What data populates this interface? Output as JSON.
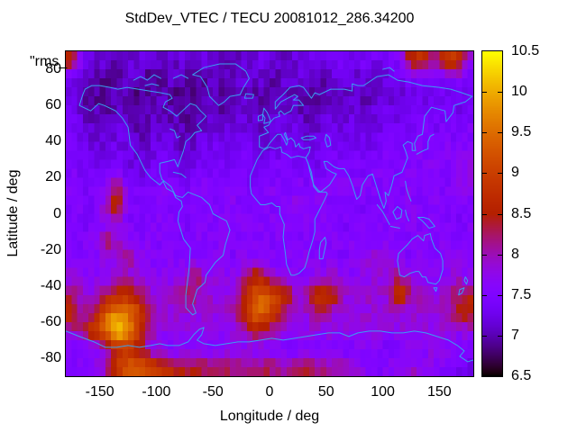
{
  "page": {
    "background": "#ffffff",
    "frame_color": "#000000"
  },
  "chart_data": {
    "type": "heatmap",
    "title": "StdDev_VTEC / TECU 20081012_286.34200",
    "xlabel": "Longitude / deg",
    "ylabel": "Latitude / deg",
    "overlay_label": "\"rms_",
    "x_range": [
      -180,
      180
    ],
    "y_range": [
      -90,
      90
    ],
    "x_ticks": [
      -150,
      -100,
      -50,
      0,
      50,
      100,
      150
    ],
    "y_ticks": [
      80,
      60,
      40,
      20,
      0,
      -20,
      -40,
      -60,
      -80
    ],
    "grid_lines": false,
    "coastline_color": "#3a9ff0",
    "colorbar": {
      "min": 6.5,
      "max": 10.5,
      "tick_values": [
        10.5,
        10,
        9.5,
        9,
        8.5,
        8,
        7.5,
        7,
        6.5
      ],
      "tick_labels": [
        "10.5",
        "10",
        "9.5",
        "9",
        "8.5",
        "8",
        "7.5",
        "7",
        "6.5"
      ],
      "dash_values": [
        10,
        9.5,
        9,
        8.5,
        8,
        7.5,
        7
      ],
      "palette": "pm3d black-purple-violet-red-orange-yellow",
      "position": "right"
    },
    "grid": {
      "lon_min": -180,
      "lat_max": 90,
      "cell_deg": 10,
      "cols": 36,
      "rows": 18,
      "units": "TECU",
      "values": [
        [
          8.7,
          7.3,
          7.2,
          7.1,
          7.0,
          7.1,
          7.2,
          7.1,
          7.0,
          7.1,
          7.2,
          7.1,
          7.2,
          7.1,
          7.0,
          7.1,
          7.2,
          7.3,
          7.2,
          7.1,
          7.2,
          7.3,
          7.2,
          7.3,
          7.4,
          7.3,
          7.4,
          7.3,
          7.4,
          7.5,
          8.6,
          8.9,
          7.8,
          8.8,
          9.1,
          7.8
        ],
        [
          7.3,
          7.1,
          7.0,
          6.9,
          7.0,
          7.1,
          7.0,
          6.9,
          7.0,
          7.1,
          7.0,
          6.9,
          7.0,
          7.1,
          7.0,
          7.1,
          7.2,
          7.1,
          7.0,
          7.1,
          7.2,
          7.1,
          7.0,
          7.1,
          7.2,
          7.1,
          7.2,
          7.1,
          7.2,
          7.3,
          7.4,
          7.3,
          7.4,
          7.5,
          7.6,
          7.4
        ],
        [
          7.2,
          7.0,
          6.9,
          6.9,
          7.0,
          6.9,
          6.8,
          6.9,
          7.0,
          6.9,
          6.8,
          6.9,
          7.0,
          6.9,
          7.0,
          7.1,
          7.0,
          6.9,
          7.0,
          7.1,
          7.0,
          6.9,
          7.0,
          7.1,
          7.0,
          7.1,
          7.0,
          7.1,
          7.2,
          7.1,
          7.2,
          7.3,
          7.2,
          7.3,
          7.2,
          7.3
        ],
        [
          7.3,
          7.1,
          7.0,
          7.0,
          7.1,
          7.0,
          6.9,
          7.0,
          7.1,
          7.0,
          6.9,
          7.0,
          7.1,
          7.0,
          7.1,
          7.2,
          7.1,
          7.0,
          7.1,
          7.2,
          7.1,
          7.0,
          7.1,
          7.2,
          7.1,
          7.2,
          7.1,
          7.2,
          7.3,
          7.2,
          7.3,
          7.4,
          7.3,
          7.4,
          7.3,
          7.4
        ],
        [
          7.4,
          7.2,
          7.1,
          7.1,
          7.2,
          7.1,
          7.0,
          7.1,
          7.2,
          7.1,
          7.0,
          7.1,
          7.2,
          7.1,
          7.2,
          7.3,
          7.2,
          7.1,
          7.2,
          7.3,
          7.2,
          7.1,
          7.2,
          7.3,
          7.2,
          7.3,
          7.2,
          7.3,
          7.4,
          7.3,
          7.4,
          7.5,
          7.4,
          7.5,
          7.4,
          7.5
        ],
        [
          7.5,
          7.3,
          7.2,
          7.2,
          7.3,
          7.2,
          7.1,
          7.2,
          7.3,
          7.2,
          7.1,
          7.2,
          7.3,
          7.4,
          7.3,
          7.4,
          7.3,
          7.2,
          7.3,
          7.4,
          7.3,
          7.2,
          7.3,
          7.4,
          7.3,
          7.4,
          7.3,
          7.4,
          7.5,
          7.4,
          7.5,
          7.6,
          7.5,
          7.6,
          7.5,
          7.6
        ],
        [
          7.5,
          7.4,
          7.3,
          7.3,
          7.4,
          7.3,
          7.2,
          7.3,
          7.4,
          7.3,
          7.2,
          7.3,
          7.4,
          7.5,
          7.4,
          7.5,
          7.4,
          7.3,
          7.4,
          7.5,
          7.4,
          7.3,
          7.4,
          7.5,
          7.4,
          7.5,
          7.4,
          7.5,
          7.6,
          7.5,
          7.6,
          7.5,
          7.6,
          7.5,
          7.6,
          7.9
        ],
        [
          7.5,
          7.4,
          7.4,
          7.5,
          8.3,
          7.5,
          7.4,
          7.5,
          7.6,
          7.5,
          7.4,
          7.5,
          7.6,
          7.5,
          7.6,
          7.5,
          7.4,
          7.5,
          7.6,
          7.5,
          7.6,
          7.5,
          7.6,
          7.5,
          7.6,
          7.5,
          7.6,
          7.5,
          7.6,
          7.5,
          7.6,
          7.5,
          7.6,
          7.5,
          7.6,
          7.7
        ],
        [
          7.5,
          7.5,
          7.4,
          8.0,
          8.9,
          7.6,
          7.4,
          7.5,
          7.6,
          7.5,
          7.4,
          7.5,
          7.6,
          7.5,
          7.6,
          7.5,
          7.5,
          7.6,
          7.5,
          7.6,
          7.9,
          7.5,
          7.6,
          7.5,
          7.6,
          7.5,
          7.4,
          7.5,
          7.6,
          7.5,
          7.6,
          7.5,
          7.6,
          7.5,
          7.6,
          7.5
        ],
        [
          7.5,
          7.4,
          7.5,
          7.6,
          7.7,
          7.5,
          7.4,
          7.5,
          7.6,
          7.5,
          7.4,
          7.5,
          7.6,
          7.5,
          7.6,
          7.5,
          7.6,
          7.5,
          7.6,
          7.5,
          7.6,
          7.5,
          7.6,
          7.5,
          7.4,
          7.5,
          7.6,
          7.5,
          7.6,
          7.5,
          7.6,
          7.5,
          7.6,
          7.5,
          7.4,
          7.5
        ],
        [
          7.5,
          7.5,
          7.6,
          8.3,
          8.0,
          7.6,
          7.5,
          7.6,
          7.5,
          7.6,
          7.5,
          7.6,
          7.5,
          7.6,
          7.5,
          7.6,
          7.5,
          7.6,
          7.5,
          7.6,
          7.5,
          7.6,
          7.5,
          7.6,
          7.5,
          7.6,
          7.5,
          7.6,
          7.5,
          7.6,
          7.5,
          7.6,
          7.5,
          7.6,
          7.5,
          7.6
        ],
        [
          7.6,
          7.6,
          7.5,
          7.7,
          7.9,
          8.2,
          7.7,
          7.6,
          7.5,
          7.6,
          7.5,
          7.6,
          7.5,
          7.6,
          7.5,
          7.6,
          7.7,
          7.6,
          7.5,
          7.6,
          7.5,
          7.6,
          7.5,
          7.6,
          7.5,
          7.6,
          7.7,
          8.0,
          7.9,
          7.6,
          7.5,
          7.6,
          7.5,
          7.6,
          7.7,
          7.6
        ],
        [
          7.8,
          7.7,
          7.6,
          7.7,
          7.8,
          7.9,
          7.7,
          7.6,
          7.7,
          7.6,
          7.7,
          8.3,
          7.8,
          7.7,
          7.6,
          7.8,
          8.6,
          8.4,
          7.9,
          7.7,
          7.6,
          7.7,
          7.8,
          7.9,
          7.7,
          7.6,
          7.7,
          7.8,
          7.9,
          8.1,
          7.8,
          7.7,
          7.6,
          7.7,
          7.8,
          7.7
        ],
        [
          8.2,
          7.9,
          7.8,
          8.3,
          8.6,
          8.8,
          8.4,
          7.9,
          7.8,
          7.9,
          8.4,
          8.1,
          7.9,
          7.8,
          7.9,
          8.3,
          9.2,
          9.4,
          9.0,
          8.6,
          7.9,
          8.2,
          9.0,
          8.7,
          7.9,
          7.8,
          7.9,
          7.8,
          7.9,
          9.0,
          8.0,
          7.9,
          7.8,
          7.9,
          8.3,
          8.5
        ],
        [
          8.8,
          8.0,
          8.4,
          9.4,
          9.8,
          9.6,
          9.0,
          8.2,
          7.9,
          7.8,
          7.9,
          7.8,
          7.9,
          7.8,
          7.9,
          8.4,
          9.3,
          9.5,
          8.9,
          8.0,
          7.9,
          7.8,
          8.4,
          7.9,
          7.8,
          7.9,
          7.8,
          7.9,
          7.8,
          7.9,
          7.8,
          7.9,
          7.8,
          7.9,
          8.4,
          8.6
        ],
        [
          7.9,
          8.3,
          9.0,
          9.5,
          10.3,
          9.9,
          8.9,
          8.0,
          7.8,
          7.7,
          7.8,
          7.7,
          7.8,
          7.7,
          7.8,
          7.9,
          8.3,
          8.4,
          7.9,
          7.8,
          7.7,
          7.8,
          7.7,
          7.8,
          7.7,
          7.8,
          7.7,
          7.8,
          7.7,
          7.8,
          7.7,
          7.8,
          7.7,
          7.8,
          7.7,
          7.8
        ],
        [
          7.5,
          7.4,
          7.6,
          7.9,
          8.6,
          8.8,
          8.4,
          7.8,
          7.6,
          7.5,
          7.6,
          7.5,
          7.6,
          7.5,
          7.6,
          7.5,
          7.6,
          7.5,
          7.6,
          7.5,
          7.4,
          7.5,
          7.6,
          7.5,
          7.4,
          7.5,
          7.6,
          7.5,
          7.4,
          7.5,
          7.6,
          7.5,
          7.8,
          7.7,
          7.5,
          7.4
        ],
        [
          7.5,
          7.6,
          7.7,
          8.0,
          8.8,
          9.4,
          9.3,
          9.0,
          8.8,
          8.6,
          8.4,
          8.5,
          8.3,
          8.4,
          8.2,
          8.3,
          8.2,
          8.3,
          8.2,
          8.1,
          8.2,
          8.3,
          8.2,
          8.1,
          8.0,
          7.8,
          7.6,
          7.5,
          7.6,
          7.7,
          7.9,
          7.8,
          7.6,
          7.5,
          7.4,
          7.3
        ]
      ]
    }
  }
}
